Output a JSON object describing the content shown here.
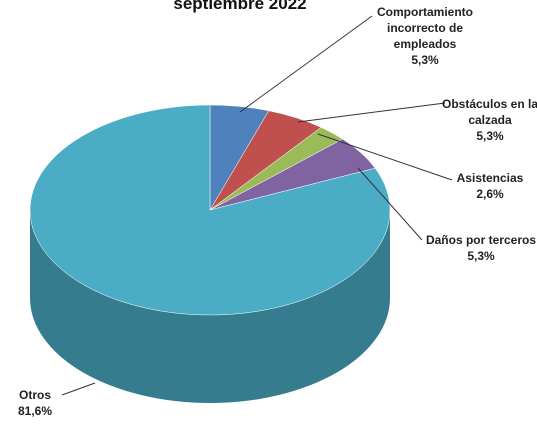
{
  "chart_data": {
    "type": "pie",
    "title": "septiembre 2022",
    "categories": [
      "Comportamiento incorrecto de empleados",
      "Obstáculos en la calzada",
      "Asistencias",
      "Daños por terceros",
      "Otros"
    ],
    "values": [
      5.3,
      5.3,
      2.6,
      5.3,
      81.6
    ],
    "value_labels": [
      "5,3%",
      "5,3%",
      "2,6%",
      "5,3%",
      "81,6%"
    ],
    "colors": [
      "#4f81bd",
      "#c0504d",
      "#9bbb59",
      "#8064a2",
      "#4bacc6"
    ]
  }
}
